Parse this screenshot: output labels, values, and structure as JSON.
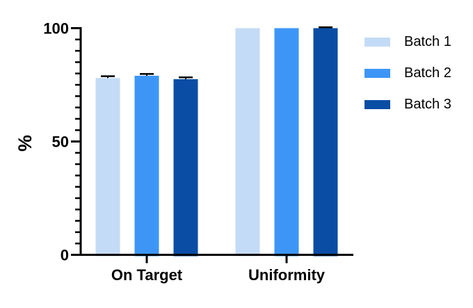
{
  "chart_data": {
    "type": "bar",
    "title": "",
    "ylabel": "%",
    "xlabel": "",
    "categories": [
      "On Target",
      "Uniformity"
    ],
    "series": [
      {
        "name": "Batch 1",
        "color": "#C3DBF6",
        "values": [
          78,
          100
        ],
        "errors": [
          0.8,
          0
        ]
      },
      {
        "name": "Batch 2",
        "color": "#3D96F6",
        "values": [
          79,
          100
        ],
        "errors": [
          0.8,
          0
        ]
      },
      {
        "name": "Batch 3",
        "color": "#0A4DA4",
        "values": [
          77.5,
          100
        ],
        "errors": [
          0.8,
          0.4
        ]
      }
    ],
    "ylim": [
      0,
      100
    ],
    "yticks": [
      0,
      50,
      100
    ],
    "y_minor_step": 5,
    "grid": false,
    "legend_position": "right",
    "axis_color": "#000000",
    "error_bar_color": "#000000"
  }
}
